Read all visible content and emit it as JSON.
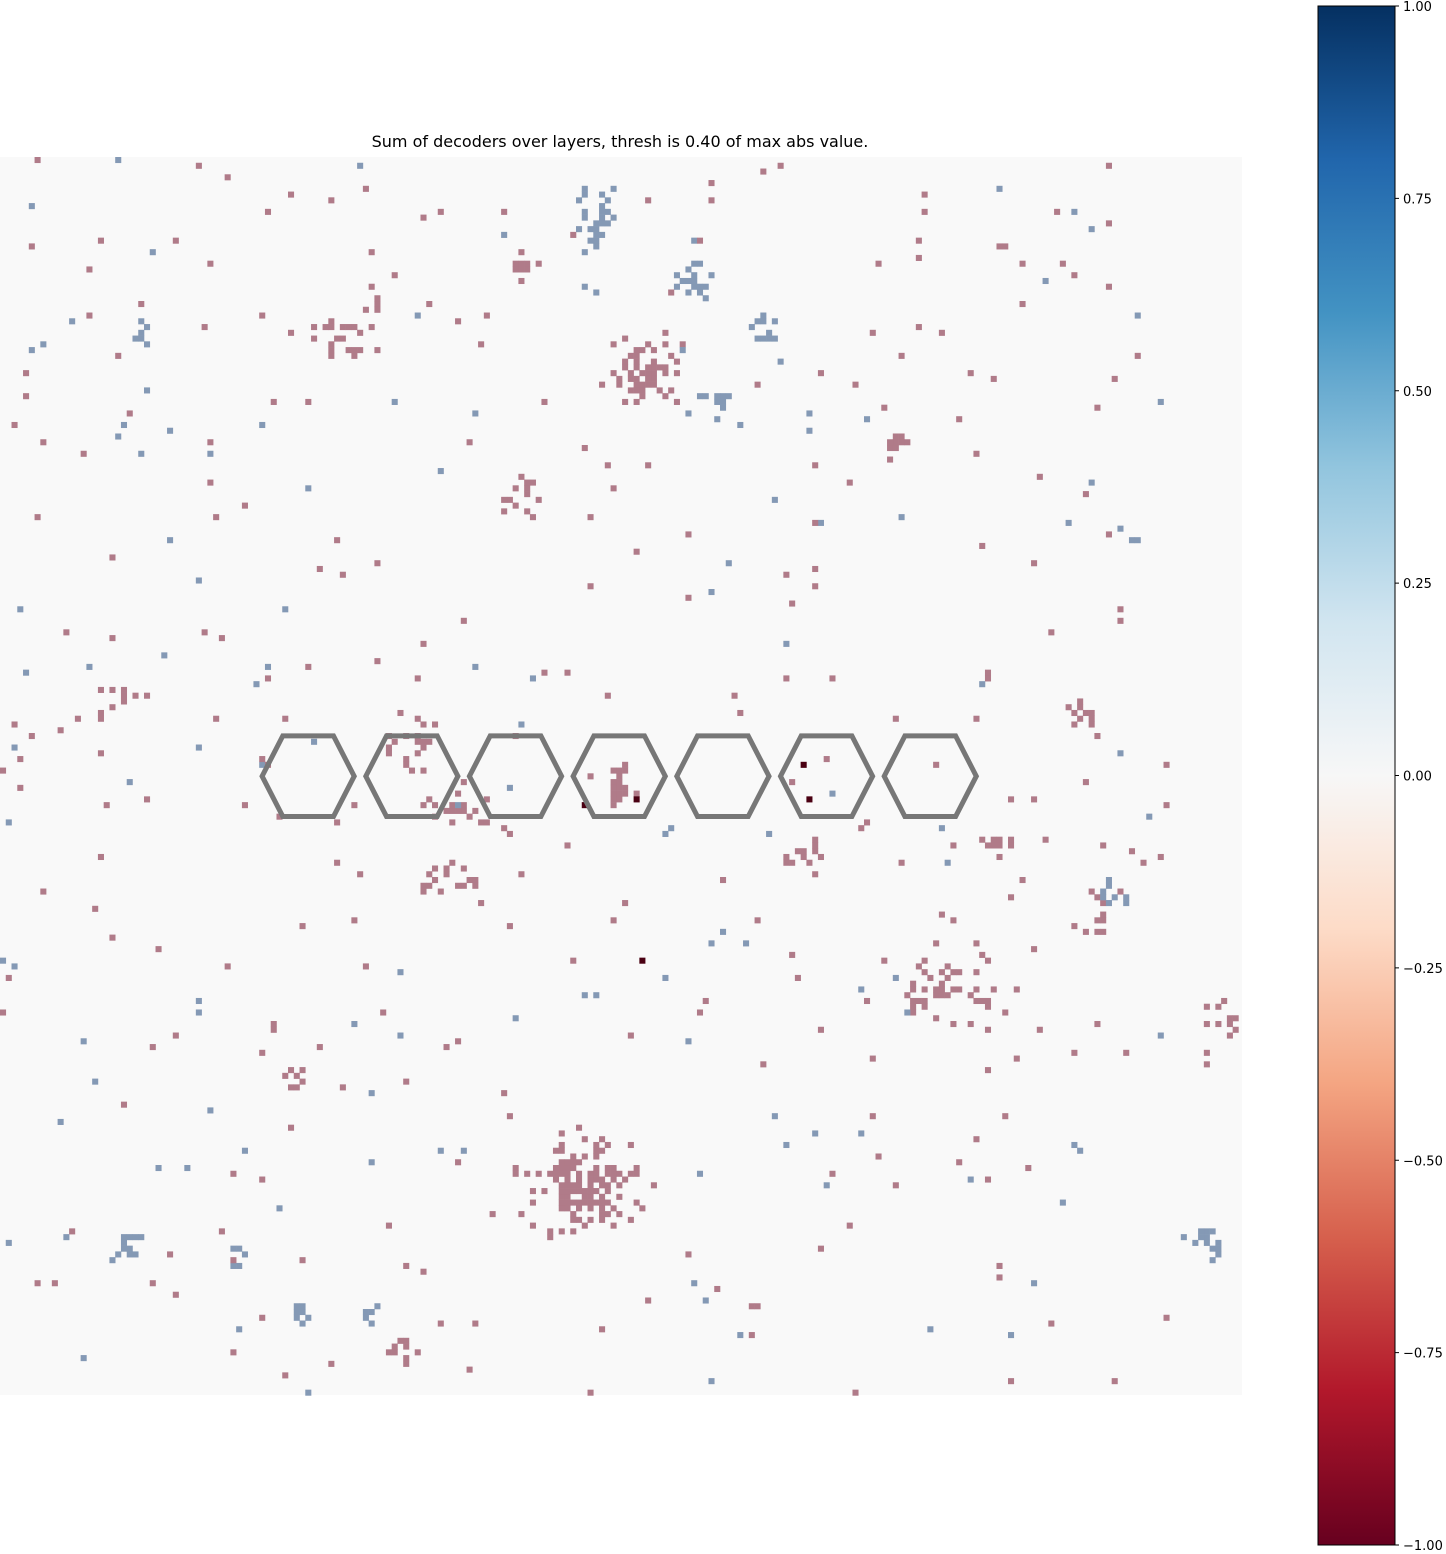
{
  "chart_data": {
    "type": "heatmap",
    "title": "Sum of decoders over layers, thresh is 0.40 of max abs value.",
    "xlabel": "",
    "ylabel": "",
    "grid": false,
    "axes_visible": false,
    "grid_size": [
      215,
      215
    ],
    "colormap": "RdBu",
    "background_value": 0,
    "colorbar": {
      "position": "right",
      "vmin": -1.0,
      "vmax": 1.0,
      "ticks": [
        1.0,
        0.75,
        0.5,
        0.25,
        0.0,
        -0.25,
        -0.5,
        -0.75,
        -1.0
      ],
      "tick_labels": [
        "1.00",
        "0.75",
        "0.50",
        "0.25",
        "0.00",
        "−0.25",
        "−0.50",
        "−0.75",
        "−1.00"
      ],
      "colors": [
        "#053061",
        "#2166ac",
        "#4393c3",
        "#92c5de",
        "#d1e5f0",
        "#f7f7f7",
        "#fddbc7",
        "#f4a582",
        "#d6604d",
        "#b2182b",
        "#67001f"
      ]
    },
    "hexagon_outline": {
      "count": 7,
      "center_row": 107,
      "center_cols": [
        53,
        71,
        89,
        107,
        125,
        143,
        161
      ],
      "half_width": 8,
      "half_height": 7,
      "color": "#777777"
    },
    "clusters": [
      {
        "sign": -1,
        "center": [
          101,
          178
        ],
        "spread": [
          8,
          6
        ],
        "count": 140
      },
      {
        "sign": -1,
        "center": [
          111,
          37
        ],
        "spread": [
          5,
          5
        ],
        "count": 55
      },
      {
        "sign": -1,
        "center": [
          107,
          109
        ],
        "spread": [
          2,
          3
        ],
        "count": 26
      },
      {
        "sign": -1,
        "center": [
          77,
          125
        ],
        "spread": [
          5,
          3
        ],
        "count": 18
      },
      {
        "sign": -1,
        "center": [
          80,
          113
        ],
        "spread": [
          5,
          4
        ],
        "count": 20
      },
      {
        "sign": -1,
        "center": [
          60,
          30
        ],
        "spread": [
          5,
          5
        ],
        "count": 25
      },
      {
        "sign": -1,
        "center": [
          71,
          102
        ],
        "spread": [
          4,
          4
        ],
        "count": 18
      },
      {
        "sign": -1,
        "center": [
          90,
          58
        ],
        "spread": [
          3,
          3
        ],
        "count": 14
      },
      {
        "sign": -1,
        "center": [
          140,
          120
        ],
        "spread": [
          3,
          3
        ],
        "count": 14
      },
      {
        "sign": -1,
        "center": [
          166,
          145
        ],
        "spread": [
          6,
          5
        ],
        "count": 30
      },
      {
        "sign": -1,
        "center": [
          214,
          150
        ],
        "spread": [
          6,
          5
        ],
        "count": 26
      },
      {
        "sign": -1,
        "center": [
          160,
          142
        ],
        "spread": [
          4,
          6
        ],
        "count": 18
      },
      {
        "sign": -1,
        "center": [
          187,
          96
        ],
        "spread": [
          2,
          2
        ],
        "count": 12
      },
      {
        "sign": -1,
        "center": [
          172,
          119
        ],
        "spread": [
          3,
          2
        ],
        "count": 10
      },
      {
        "sign": -1,
        "center": [
          190,
          130
        ],
        "spread": [
          2,
          3
        ],
        "count": 9
      },
      {
        "sign": -1,
        "center": [
          155,
          49
        ],
        "spread": [
          2,
          2
        ],
        "count": 10
      },
      {
        "sign": -1,
        "center": [
          90,
          19
        ],
        "spread": [
          2,
          2
        ],
        "count": 8
      },
      {
        "sign": -1,
        "center": [
          20,
          92
        ],
        "spread": [
          4,
          3
        ],
        "count": 10
      },
      {
        "sign": -1,
        "center": [
          50,
          160
        ],
        "spread": [
          2,
          2
        ],
        "count": 8
      },
      {
        "sign": -1,
        "center": [
          70,
          208
        ],
        "spread": [
          3,
          3
        ],
        "count": 8
      },
      {
        "sign": 1,
        "center": [
          103,
          10
        ],
        "spread": [
          3,
          5
        ],
        "count": 30
      },
      {
        "sign": 1,
        "center": [
          120,
          21
        ],
        "spread": [
          3,
          3
        ],
        "count": 18
      },
      {
        "sign": 1,
        "center": [
          133,
          30
        ],
        "spread": [
          3,
          4
        ],
        "count": 12
      },
      {
        "sign": 1,
        "center": [
          52,
          200
        ],
        "spread": [
          2,
          2
        ],
        "count": 8
      },
      {
        "sign": 1,
        "center": [
          41,
          190
        ],
        "spread": [
          1,
          2
        ],
        "count": 6
      },
      {
        "sign": 1,
        "center": [
          22,
          188
        ],
        "spread": [
          2,
          3
        ],
        "count": 12
      },
      {
        "sign": 1,
        "center": [
          208,
          188
        ],
        "spread": [
          3,
          2
        ],
        "count": 16
      },
      {
        "sign": 1,
        "center": [
          173,
          220
        ],
        "spread": [
          3,
          2
        ],
        "count": 16
      },
      {
        "sign": 1,
        "center": [
          193,
          127
        ],
        "spread": [
          3,
          3
        ],
        "count": 10
      },
      {
        "sign": 1,
        "center": [
          125,
          41
        ],
        "spread": [
          3,
          3
        ],
        "count": 10
      },
      {
        "sign": 1,
        "center": [
          64,
          200
        ],
        "spread": [
          1,
          2
        ],
        "count": 6
      },
      {
        "sign": 1,
        "center": [
          24,
          31
        ],
        "spread": [
          3,
          2
        ],
        "count": 8
      }
    ],
    "scatter_positive": 130,
    "scatter_negative": 300,
    "extreme_cells": [
      [
        139,
        105
      ],
      [
        140,
        111
      ],
      [
        101,
        112
      ],
      [
        110,
        111
      ],
      [
        111,
        139
      ]
    ]
  }
}
